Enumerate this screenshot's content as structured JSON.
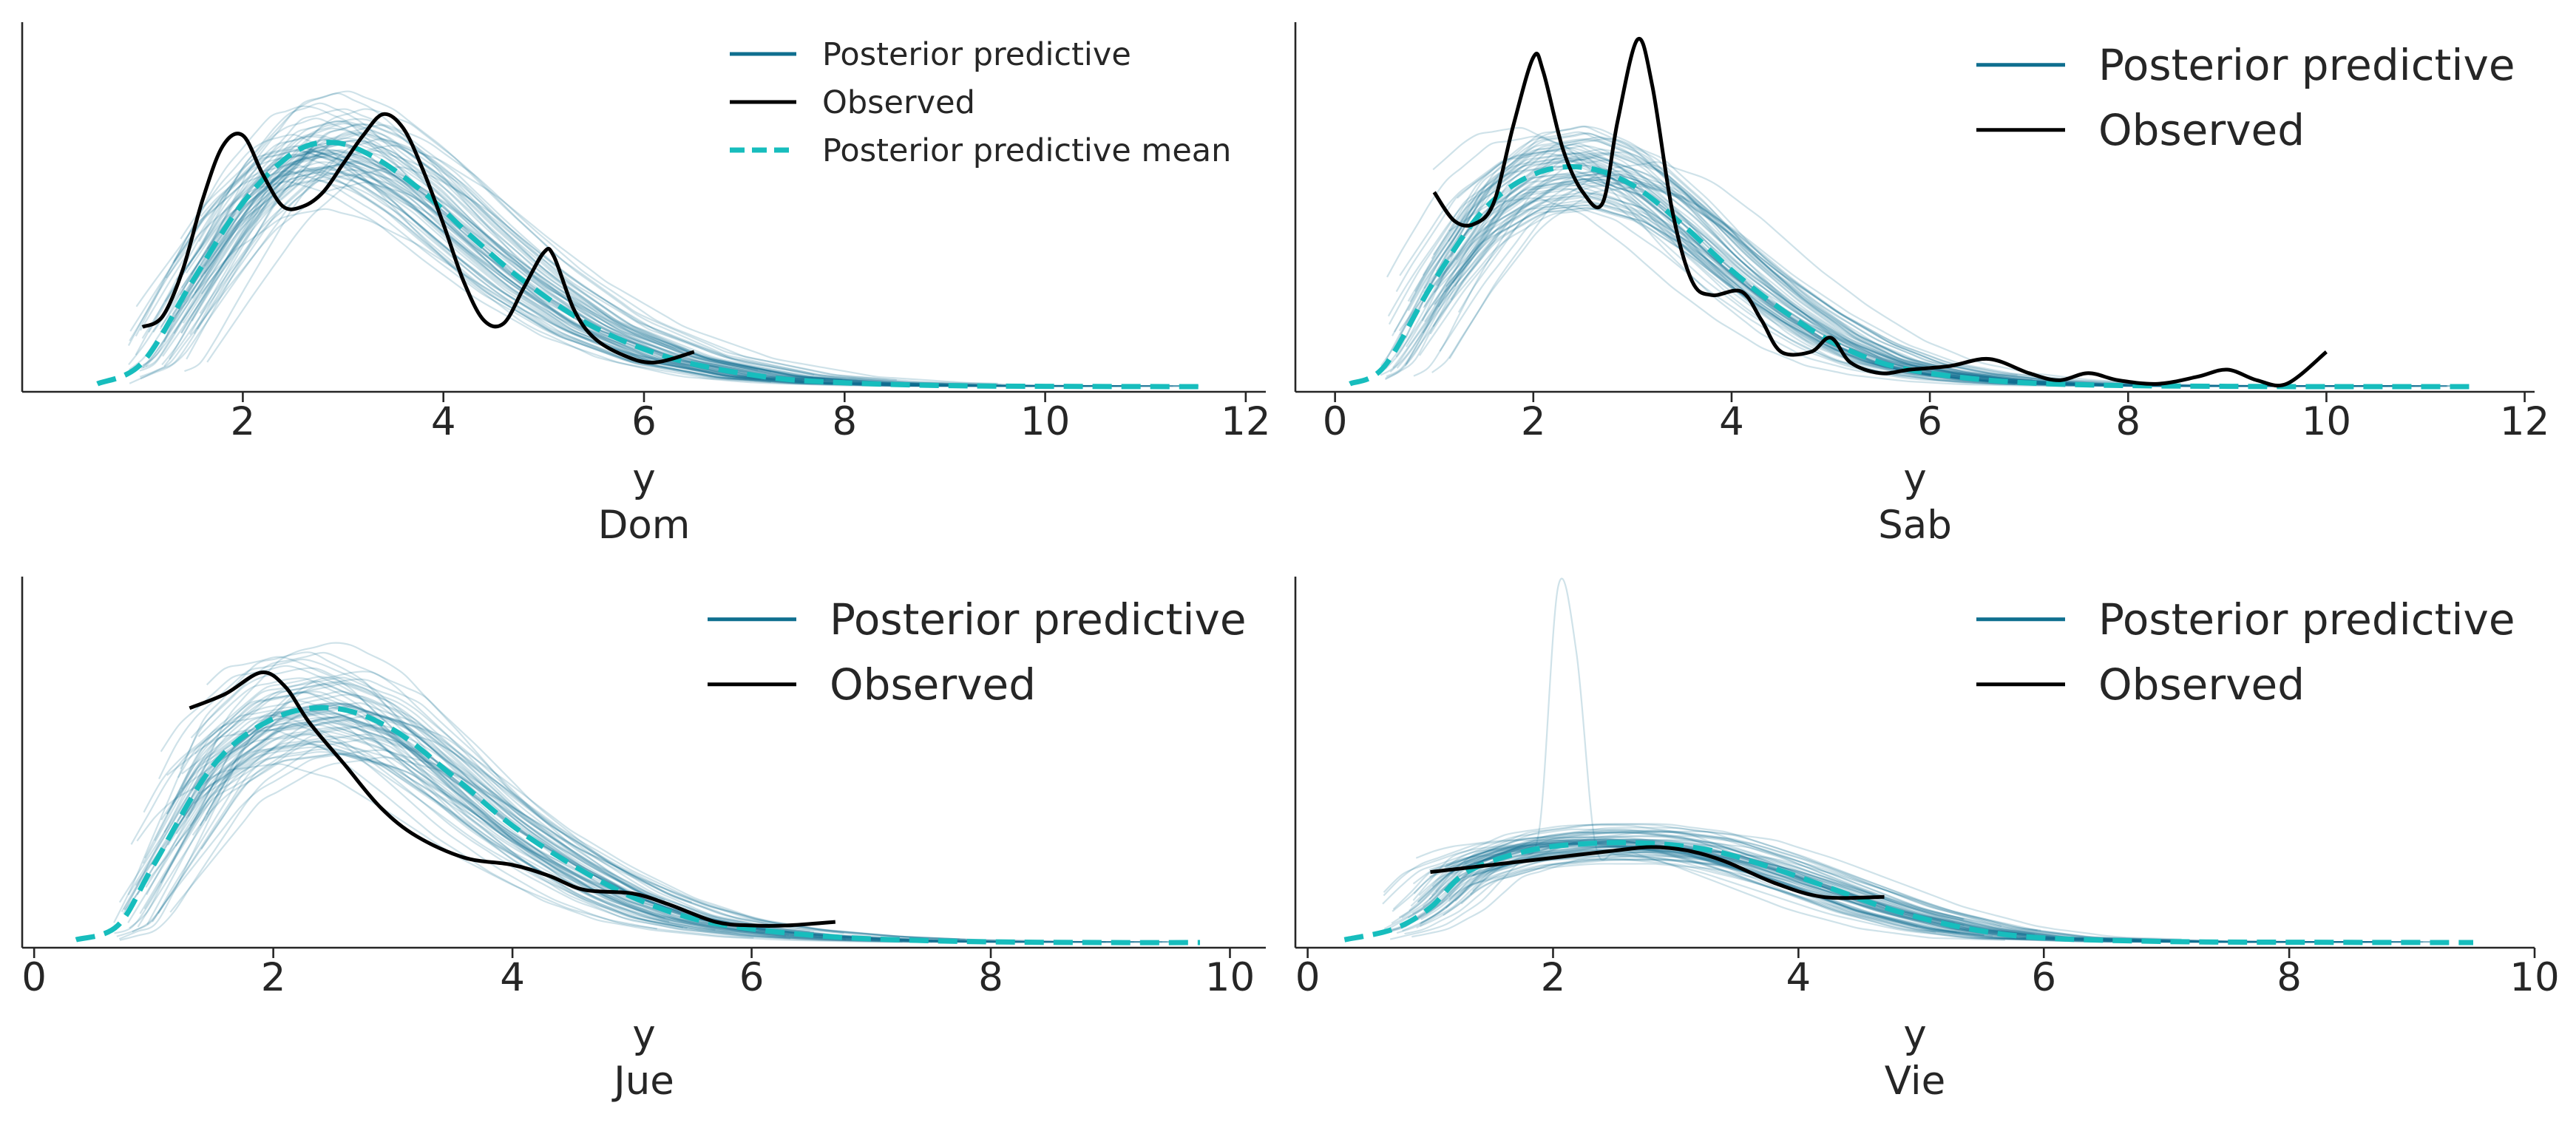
{
  "chart_data": [
    {
      "type": "line",
      "panel_title": "Dom",
      "xlabel": "y",
      "xlim": [
        -0.2,
        12.2
      ],
      "xticks": [
        2,
        4,
        6,
        8,
        10,
        12
      ],
      "tick_labels": [
        "2",
        "4",
        "6",
        "8",
        "10",
        "12"
      ],
      "legend": {
        "placement": "top-right",
        "entries": [
          "Posterior predictive",
          "Observed",
          "Posterior predictive mean"
        ]
      },
      "colors": {
        "predictive": "#0f6f8f",
        "observed": "#000000",
        "mean": "#17bdbd"
      },
      "series": [
        {
          "name": "Posterior predictive mean",
          "x": [
            0.55,
            1.0,
            1.5,
            2.0,
            2.5,
            2.9,
            3.3,
            3.8,
            4.3,
            4.8,
            5.5,
            6.3,
            7.2,
            8.0,
            9.0,
            10.0,
            11.6
          ],
          "y": [
            0.01,
            0.07,
            0.3,
            0.52,
            0.66,
            0.69,
            0.65,
            0.55,
            0.42,
            0.3,
            0.17,
            0.08,
            0.03,
            0.013,
            0.005,
            0.003,
            0.002
          ]
        },
        {
          "name": "Observed",
          "x": [
            1.0,
            1.2,
            1.4,
            1.6,
            1.8,
            2.0,
            2.2,
            2.4,
            2.6,
            2.8,
            3.0,
            3.2,
            3.4,
            3.6,
            3.8,
            4.0,
            4.2,
            4.4,
            4.6,
            4.8,
            5.0,
            5.1,
            5.3,
            5.5,
            5.8,
            6.1,
            6.5
          ],
          "y": [
            0.17,
            0.2,
            0.33,
            0.53,
            0.68,
            0.71,
            0.6,
            0.51,
            0.51,
            0.55,
            0.63,
            0.71,
            0.77,
            0.73,
            0.61,
            0.46,
            0.3,
            0.19,
            0.18,
            0.28,
            0.38,
            0.37,
            0.22,
            0.14,
            0.09,
            0.07,
            0.1
          ]
        }
      ]
    },
    {
      "type": "line",
      "panel_title": "Sab",
      "xlabel": "y",
      "xlim": [
        -0.4,
        12.1
      ],
      "xticks": [
        0,
        2,
        4,
        6,
        8,
        10,
        12
      ],
      "tick_labels": [
        "0",
        "2",
        "4",
        "6",
        "8",
        "10",
        "12"
      ],
      "legend": {
        "placement": "top-right",
        "entries": [
          "Posterior predictive",
          "Observed"
        ]
      },
      "colors": {
        "predictive": "#0f6f8f",
        "observed": "#000000",
        "mean": "#17bdbd"
      },
      "series": [
        {
          "name": "Posterior predictive mean",
          "x": [
            0.15,
            0.5,
            1.0,
            1.5,
            2.0,
            2.5,
            3.0,
            3.5,
            4.0,
            4.5,
            5.0,
            5.5,
            6.0,
            6.6,
            7.2,
            8.0,
            9.0,
            10.0,
            11.5
          ],
          "y": [
            0.01,
            0.06,
            0.3,
            0.5,
            0.6,
            0.62,
            0.57,
            0.46,
            0.33,
            0.22,
            0.13,
            0.07,
            0.04,
            0.02,
            0.01,
            0.005,
            0.003,
            0.002,
            0.002
          ]
        },
        {
          "name": "Observed",
          "x": [
            1.0,
            1.2,
            1.4,
            1.6,
            1.8,
            2.0,
            2.1,
            2.3,
            2.5,
            2.7,
            2.85,
            3.05,
            3.2,
            3.4,
            3.6,
            3.8,
            4.1,
            4.3,
            4.5,
            4.8,
            5.0,
            5.2,
            5.5,
            5.8,
            6.2,
            6.6,
            7.0,
            7.3,
            7.6,
            7.9,
            8.3,
            8.7,
            9.0,
            9.3,
            9.6,
            10.0
          ],
          "y": [
            0.55,
            0.47,
            0.46,
            0.52,
            0.74,
            0.93,
            0.89,
            0.67,
            0.55,
            0.52,
            0.75,
            0.98,
            0.85,
            0.5,
            0.3,
            0.26,
            0.27,
            0.19,
            0.1,
            0.1,
            0.14,
            0.07,
            0.04,
            0.05,
            0.06,
            0.08,
            0.04,
            0.02,
            0.04,
            0.02,
            0.01,
            0.03,
            0.05,
            0.02,
            0.01,
            0.1
          ]
        }
      ]
    },
    {
      "type": "line",
      "panel_title": "Jue",
      "xlabel": "y",
      "xlim": [
        -0.1,
        10.3
      ],
      "xticks": [
        0,
        2,
        4,
        6,
        8,
        10
      ],
      "tick_labels": [
        "0",
        "2",
        "4",
        "6",
        "8",
        "10"
      ],
      "legend": {
        "placement": "top-right",
        "entries": [
          "Posterior predictive",
          "Observed"
        ]
      },
      "colors": {
        "predictive": "#0f6f8f",
        "observed": "#000000",
        "mean": "#17bdbd"
      },
      "series": [
        {
          "name": "Posterior predictive mean",
          "x": [
            0.35,
            0.7,
            1.0,
            1.5,
            2.0,
            2.5,
            3.0,
            3.5,
            4.0,
            4.5,
            5.0,
            5.5,
            6.0,
            6.6,
            7.2,
            8.0,
            9.0,
            9.75
          ],
          "y": [
            0.01,
            0.05,
            0.22,
            0.5,
            0.63,
            0.66,
            0.6,
            0.47,
            0.33,
            0.22,
            0.13,
            0.07,
            0.04,
            0.02,
            0.01,
            0.004,
            0.002,
            0.002
          ]
        },
        {
          "name": "Observed",
          "x": [
            1.3,
            1.6,
            1.9,
            2.1,
            2.3,
            2.6,
            2.9,
            3.2,
            3.6,
            4.0,
            4.3,
            4.6,
            5.0,
            5.3,
            5.7,
            6.0,
            6.3,
            6.7
          ],
          "y": [
            0.66,
            0.7,
            0.76,
            0.72,
            0.62,
            0.5,
            0.38,
            0.3,
            0.24,
            0.22,
            0.19,
            0.15,
            0.14,
            0.11,
            0.06,
            0.05,
            0.05,
            0.06
          ]
        }
      ]
    },
    {
      "type": "line",
      "panel_title": "Vie",
      "xlabel": "y",
      "xlim": [
        -0.1,
        10.0
      ],
      "xticks": [
        0,
        2,
        4,
        6,
        8,
        10
      ],
      "tick_labels": [
        "0",
        "2",
        "4",
        "6",
        "8",
        "10"
      ],
      "legend": {
        "placement": "top-right",
        "entries": [
          "Posterior predictive",
          "Observed"
        ]
      },
      "colors": {
        "predictive": "#0f6f8f",
        "observed": "#000000",
        "mean": "#17bdbd"
      },
      "series": [
        {
          "name": "Posterior predictive mean",
          "x": [
            0.3,
            0.7,
            1.0,
            1.3,
            1.8,
            2.3,
            2.8,
            3.3,
            3.8,
            4.3,
            4.8,
            5.4,
            6.0,
            7.0,
            8.0,
            9.5
          ],
          "y": [
            0.01,
            0.04,
            0.1,
            0.2,
            0.26,
            0.28,
            0.28,
            0.26,
            0.21,
            0.15,
            0.09,
            0.04,
            0.015,
            0.005,
            0.003,
            0.002
          ]
        },
        {
          "name": "Observed",
          "x": [
            1.0,
            1.5,
            2.0,
            2.5,
            2.8,
            3.1,
            3.4,
            3.8,
            4.2,
            4.7
          ],
          "y": [
            0.2,
            0.22,
            0.24,
            0.26,
            0.27,
            0.26,
            0.23,
            0.17,
            0.13,
            0.13
          ]
        }
      ]
    }
  ]
}
